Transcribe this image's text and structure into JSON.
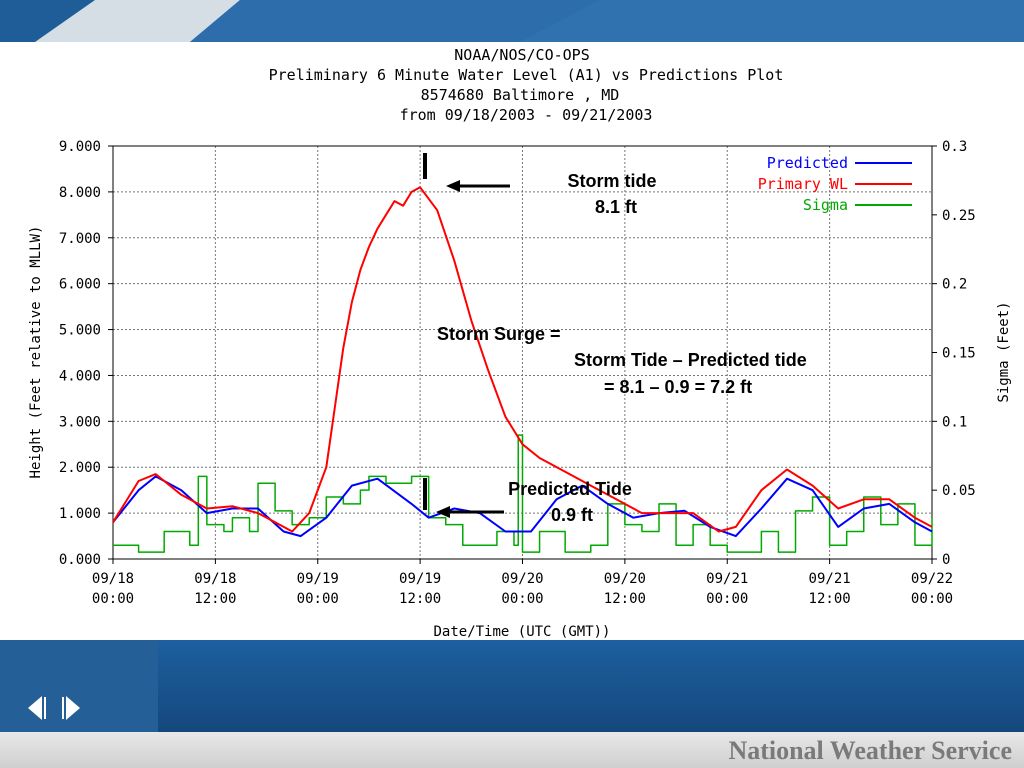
{
  "header": {
    "line1": "NOAA/NOS/CO-OPS",
    "line2": "Preliminary 6 Minute Water Level (A1) vs Predictions Plot",
    "line3": "8574680 Baltimore , MD",
    "line4": "from 09/18/2003 - 09/21/2003"
  },
  "colors": {
    "predicted": "#0000ff",
    "primary_wl": "#ff0000",
    "sigma": "#00aa00",
    "banner_blue": "#1d5fa0",
    "footer_text": "#7a7a7a"
  },
  "chart_data": {
    "type": "line",
    "title": "NOAA/NOS/CO-OPS Preliminary 6 Minute Water Level (A1) vs Predictions Plot 8574680 Baltimore , MD from 09/18/2003 - 09/21/2003",
    "xlabel": "Date/Time (UTC (GMT))",
    "ylabel": "Height (Feet relative to MLLW)",
    "y2label": "Sigma (Feet)",
    "x_unit": "hours",
    "xlim": [
      0,
      96
    ],
    "ylim": [
      0,
      9
    ],
    "y2lim": [
      0,
      0.3
    ],
    "grid": true,
    "legend_placement": "top-right",
    "x_ticks": [
      {
        "value": 0,
        "line1": "09/18",
        "line2": "00:00"
      },
      {
        "value": 12,
        "line1": "09/18",
        "line2": "12:00"
      },
      {
        "value": 24,
        "line1": "09/19",
        "line2": "00:00"
      },
      {
        "value": 36,
        "line1": "09/19",
        "line2": "12:00"
      },
      {
        "value": 48,
        "line1": "09/20",
        "line2": "00:00"
      },
      {
        "value": 60,
        "line1": "09/20",
        "line2": "12:00"
      },
      {
        "value": 72,
        "line1": "09/21",
        "line2": "00:00"
      },
      {
        "value": 84,
        "line1": "09/21",
        "line2": "12:00"
      },
      {
        "value": 96,
        "line1": "09/22",
        "line2": "00:00"
      }
    ],
    "y_ticks": [
      "0.000",
      "1.000",
      "2.000",
      "3.000",
      "4.000",
      "5.000",
      "6.000",
      "7.000",
      "8.000",
      "9.000"
    ],
    "y_tick_values": [
      0,
      1,
      2,
      3,
      4,
      5,
      6,
      7,
      8,
      9
    ],
    "y2_ticks": [
      "0",
      "0.05",
      "0.1",
      "0.15",
      "0.2",
      "0.25",
      "0.3"
    ],
    "y2_tick_values": [
      0,
      0.05,
      0.1,
      0.15,
      0.2,
      0.25,
      0.3
    ],
    "series": [
      {
        "name": "Predicted",
        "axis": "left",
        "x": [
          0,
          3,
          5,
          8,
          11,
          14,
          17,
          20,
          22,
          25,
          28,
          31,
          35,
          37,
          40,
          43,
          46,
          49,
          52,
          55,
          58,
          61,
          64,
          67,
          70,
          73,
          76,
          79,
          82,
          85,
          88,
          91,
          94,
          96
        ],
        "y": [
          0.8,
          1.5,
          1.8,
          1.5,
          1.0,
          1.1,
          1.1,
          0.6,
          0.5,
          0.9,
          1.6,
          1.75,
          1.2,
          0.9,
          1.1,
          1.0,
          0.6,
          0.6,
          1.3,
          1.6,
          1.2,
          0.9,
          1.0,
          1.05,
          0.7,
          0.5,
          1.1,
          1.75,
          1.5,
          0.7,
          1.1,
          1.2,
          0.8,
          0.6
        ]
      },
      {
        "name": "Primary WL",
        "axis": "left",
        "x": [
          0,
          3,
          5,
          8,
          11,
          14,
          17,
          19,
          21,
          23,
          25,
          26,
          27,
          28,
          29,
          30,
          31,
          32,
          33,
          34,
          35,
          36,
          38,
          40,
          42,
          44,
          46,
          48,
          50,
          53,
          56,
          59,
          62,
          65,
          68,
          71,
          73,
          76,
          79,
          82,
          85,
          88,
          91,
          94,
          96
        ],
        "y": [
          0.8,
          1.7,
          1.85,
          1.4,
          1.1,
          1.15,
          1.0,
          0.8,
          0.6,
          1.0,
          2.0,
          3.3,
          4.6,
          5.6,
          6.3,
          6.8,
          7.2,
          7.5,
          7.8,
          7.7,
          8.0,
          8.1,
          7.6,
          6.5,
          5.2,
          4.1,
          3.1,
          2.5,
          2.2,
          1.9,
          1.6,
          1.3,
          1.0,
          1.0,
          1.0,
          0.6,
          0.7,
          1.5,
          1.95,
          1.6,
          1.1,
          1.3,
          1.3,
          0.9,
          0.7
        ]
      },
      {
        "name": "Sigma",
        "axis": "right",
        "x": [
          0,
          3,
          6,
          9,
          10,
          11,
          13,
          14,
          16,
          17,
          19,
          21,
          23,
          25,
          27,
          29,
          30,
          32,
          35,
          37,
          39,
          41,
          43,
          45,
          47,
          47.5,
          48,
          50,
          53,
          56,
          58,
          60,
          62,
          64,
          66,
          68,
          70,
          72,
          74,
          76,
          78,
          80,
          82,
          84,
          86,
          88,
          90,
          92,
          94,
          96
        ],
        "y": [
          0.01,
          0.005,
          0.02,
          0.01,
          0.06,
          0.025,
          0.02,
          0.03,
          0.02,
          0.055,
          0.035,
          0.025,
          0.03,
          0.045,
          0.04,
          0.05,
          0.06,
          0.055,
          0.06,
          0.03,
          0.025,
          0.01,
          0.01,
          0.02,
          0.01,
          0.09,
          0.005,
          0.02,
          0.005,
          0.01,
          0.04,
          0.025,
          0.02,
          0.04,
          0.01,
          0.025,
          0.01,
          0.005,
          0.005,
          0.02,
          0.005,
          0.035,
          0.045,
          0.01,
          0.02,
          0.045,
          0.025,
          0.04,
          0.01,
          0.03
        ]
      }
    ],
    "annotations": [
      {
        "id": "storm_tide",
        "lines": [
          "Storm tide",
          "8.1 ft"
        ]
      },
      {
        "id": "storm_surge",
        "lines": [
          "Storm Surge =",
          "Storm Tide – Predicted tide",
          "= 8.1 – 0.9 = 7.2 ft"
        ]
      },
      {
        "id": "predicted_tide",
        "lines": [
          "Predicted Tide",
          "0.9 ft"
        ]
      }
    ]
  },
  "footer": {
    "org_name": "National Weather Service"
  }
}
